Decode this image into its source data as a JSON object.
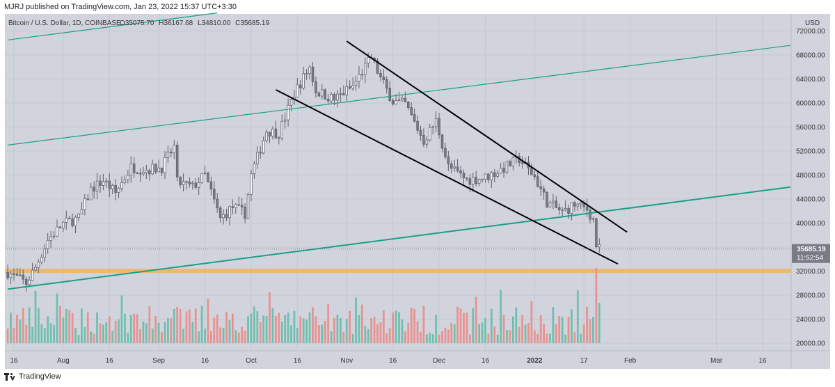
{
  "publisher_line": "MJRJ published on TradingView.com, Jan 23, 2022 15:37 UTC+3:30",
  "footer_brand": "TradingView",
  "colors": {
    "background": "#d1d4dc",
    "up": "#ffffff",
    "down": "#787b86",
    "volume_up": "#6fbfae",
    "volume_down": "#e8918f",
    "teal_line": "#1a9e8a",
    "trend_line": "#000000",
    "support_band": "#f0b566",
    "price_label_bg": "#787b86"
  },
  "chart_data": {
    "type": "candlestick",
    "title": "Bitcoin / U.S. Dollar, 1D, COINBASE",
    "ohlc": {
      "o_label": "O",
      "o": "35075.70",
      "h_label": "H",
      "h": "36167.68",
      "l_label": "L",
      "l": "34810.00",
      "c_label": "C",
      "c": "35685.19"
    },
    "currency_label": "USD",
    "y_ticks": [
      "72000.00",
      "68000.00",
      "64000.00",
      "60000.00",
      "56000.00",
      "52000.00",
      "48000.00",
      "44000.00",
      "40000.00",
      "36000.00",
      "32000.00",
      "28000.00",
      "24000.00",
      "20000.00"
    ],
    "y_tick_values": [
      72000,
      68000,
      64000,
      60000,
      56000,
      52000,
      48000,
      44000,
      40000,
      36000,
      32000,
      28000,
      24000,
      20000
    ],
    "x_labels": [
      "16",
      "Aug",
      "16",
      "Sep",
      "16",
      "Oct",
      "16",
      "Nov",
      "16",
      "Dec",
      "16",
      "2022",
      "17",
      "Feb",
      "Mar",
      "16"
    ],
    "x_label_dates": [
      "2021-07-16",
      "2021-08-01",
      "2021-08-16",
      "2021-09-01",
      "2021-09-16",
      "2021-10-01",
      "2021-10-16",
      "2021-11-01",
      "2021-11-16",
      "2021-12-01",
      "2021-12-16",
      "2022-01-01",
      "2022-01-17",
      "2022-02-01",
      "2022-03-01",
      "2022-03-16"
    ],
    "last_price_label": "35685.19",
    "countdown_label": "11:52:54",
    "last_price": 35685.19,
    "support_zone": [
      31700,
      32400
    ],
    "close_series_anchors": [
      [
        "2021-07-14",
        31800
      ],
      [
        "2021-07-20",
        30000
      ],
      [
        "2021-07-23",
        32600
      ],
      [
        "2021-07-27",
        37200
      ],
      [
        "2021-08-01",
        39900
      ],
      [
        "2021-08-06",
        40800
      ],
      [
        "2021-08-10",
        45600
      ],
      [
        "2021-08-14",
        47100
      ],
      [
        "2021-08-18",
        45000
      ],
      [
        "2021-08-23",
        49300
      ],
      [
        "2021-08-28",
        48900
      ],
      [
        "2021-09-02",
        49300
      ],
      [
        "2021-09-06",
        52700
      ],
      [
        "2021-09-07",
        46800
      ],
      [
        "2021-09-12",
        46000
      ],
      [
        "2021-09-16",
        48000
      ],
      [
        "2021-09-21",
        40700
      ],
      [
        "2021-09-25",
        42700
      ],
      [
        "2021-09-29",
        41600
      ],
      [
        "2021-10-01",
        48000
      ],
      [
        "2021-10-06",
        55400
      ],
      [
        "2021-10-10",
        55000
      ],
      [
        "2021-10-15",
        61600
      ],
      [
        "2021-10-20",
        66000
      ],
      [
        "2021-10-22",
        62000
      ],
      [
        "2021-10-28",
        60600
      ],
      [
        "2021-11-03",
        62800
      ],
      [
        "2021-11-09",
        67600
      ],
      [
        "2021-11-12",
        64100
      ],
      [
        "2021-11-16",
        60300
      ],
      [
        "2021-11-20",
        59800
      ],
      [
        "2021-11-26",
        53700
      ],
      [
        "2021-11-30",
        57000
      ],
      [
        "2021-12-04",
        49400
      ],
      [
        "2021-12-10",
        47200
      ],
      [
        "2021-12-16",
        47600
      ],
      [
        "2021-12-21",
        48900
      ],
      [
        "2021-12-27",
        50700
      ],
      [
        "2022-01-01",
        47700
      ],
      [
        "2022-01-05",
        43500
      ],
      [
        "2022-01-10",
        41800
      ],
      [
        "2022-01-14",
        43100
      ],
      [
        "2022-01-18",
        42300
      ],
      [
        "2022-01-20",
        40600
      ],
      [
        "2022-01-21",
        36300
      ],
      [
        "2022-01-22",
        35685
      ]
    ],
    "volume_axis_max": 4.0,
    "overlays": [
      {
        "type": "teal_line",
        "from": [
          "2021-07-14",
          70500
        ],
        "to": [
          "2021-09-20",
          75000
        ]
      },
      {
        "type": "teal_line",
        "from": [
          "2021-07-14",
          53000
        ],
        "to": [
          "2022-03-25",
          69600
        ]
      },
      {
        "type": "teal_line",
        "from": [
          "2021-07-14",
          29000
        ],
        "to": [
          "2022-03-25",
          46000
        ]
      },
      {
        "type": "trend_line",
        "from": [
          "2021-10-09",
          62200
        ],
        "to": [
          "2022-01-28",
          33200
        ]
      },
      {
        "type": "trend_line",
        "from": [
          "2021-11-01",
          70300
        ],
        "to": [
          "2022-01-31",
          38500
        ]
      }
    ]
  }
}
